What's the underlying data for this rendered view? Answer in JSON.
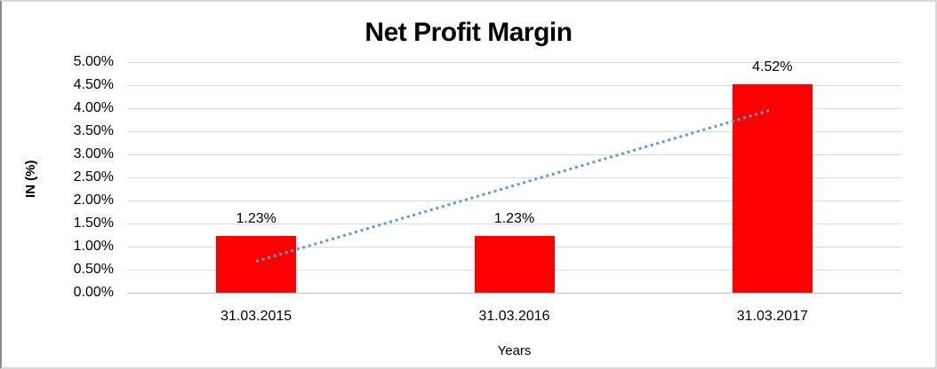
{
  "chart_data": {
    "type": "bar",
    "title": "Net Profit Margin",
    "xlabel": "Years",
    "ylabel": "IN (%)",
    "categories": [
      "31.03.2015",
      "31.03.2016",
      "31.03.2017"
    ],
    "values": [
      1.23,
      1.23,
      4.52
    ],
    "data_labels": [
      "1.23%",
      "1.23%",
      "4.52%"
    ],
    "ylim": [
      0,
      5
    ],
    "ytick_step": 0.5,
    "ytick_labels": [
      "5.00%",
      "4.50%",
      "4.00%",
      "3.50%",
      "3.00%",
      "2.50%",
      "2.00%",
      "1.50%",
      "1.00%",
      "0.50%",
      "0.00%"
    ],
    "bar_color": "#ff0000",
    "grid": true,
    "gridline_color": "#d9d9d9",
    "axis_line_color": "#c0c0c0",
    "legend_position": "none",
    "trendline": {
      "type": "linear",
      "style": "dotted",
      "color": "#5b9bd5",
      "start_value": 0.68,
      "end_value": 3.97
    }
  }
}
